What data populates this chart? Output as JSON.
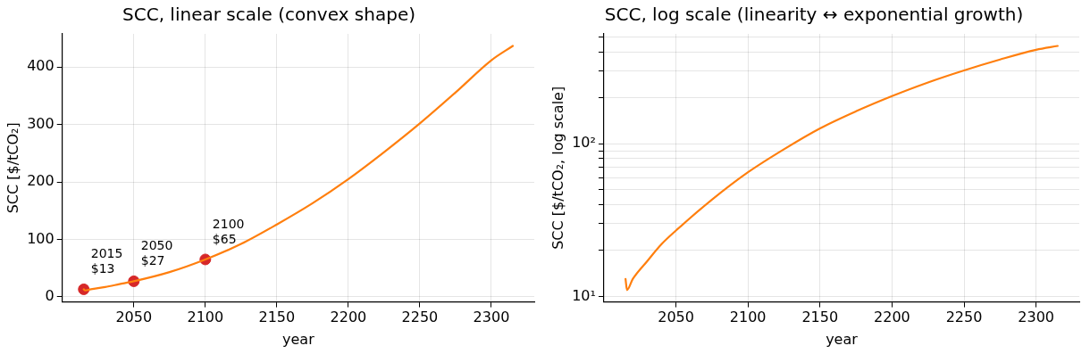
{
  "chart_data": [
    {
      "type": "line",
      "title": "SCC, linear scale (convex shape)",
      "xlabel": "year",
      "ylabel": "SCC [$/tCO₂]",
      "xlim": [
        2000,
        2330
      ],
      "xticks": [
        2050,
        2100,
        2150,
        2200,
        2250,
        2300
      ],
      "ylim": [
        -9,
        458
      ],
      "yticks": [
        0,
        100,
        200,
        300,
        400
      ],
      "grid": true,
      "series": [
        {
          "type": "line",
          "color": "#ff7f0e",
          "marker": "none",
          "x": [
            2015,
            2016,
            2020,
            2030,
            2040,
            2050,
            2075,
            2100,
            2125,
            2150,
            2175,
            2200,
            2225,
            2250,
            2275,
            2300,
            2315
          ],
          "values": [
            13,
            11,
            13,
            17,
            22,
            27,
            43,
            65,
            92,
            126,
            163,
            205,
            252,
            302,
            356,
            412,
            437
          ]
        },
        {
          "type": "scatter",
          "color": "#d62728",
          "marker": "circle",
          "x": [
            2015,
            2050,
            2100
          ],
          "values": [
            13,
            27,
            65
          ],
          "value_labels": [
            "2015\n$13",
            "2050\n$27",
            "2100\n$65"
          ]
        }
      ]
    },
    {
      "type": "line",
      "title": "SCC, log scale (linearity ↔ exponential growth)",
      "xlabel": "year",
      "ylabel": "SCC [$/tCO₂, log scale]",
      "xlim": [
        2000,
        2330
      ],
      "xticks": [
        2050,
        2100,
        2150,
        2200,
        2250,
        2300
      ],
      "ylim": [
        9.2,
        524
      ],
      "log": "y",
      "yticks": [
        {
          "value": 10,
          "label": "10¹"
        },
        {
          "value": 20,
          "label": null
        },
        {
          "value": 30,
          "label": null
        },
        {
          "value": 40,
          "label": null
        },
        {
          "value": 50,
          "label": null
        },
        {
          "value": 60,
          "label": null
        },
        {
          "value": 70,
          "label": null
        },
        {
          "value": 80,
          "label": null
        },
        {
          "value": 90,
          "label": null
        },
        {
          "value": 100,
          "label": "10²"
        },
        {
          "value": 200,
          "label": null
        },
        {
          "value": 300,
          "label": null
        },
        {
          "value": 400,
          "label": null
        },
        {
          "value": 500,
          "label": null
        }
      ],
      "grid": true,
      "series": [
        {
          "type": "line",
          "color": "#ff7f0e",
          "marker": "none",
          "x": [
            2015,
            2016,
            2020,
            2030,
            2040,
            2050,
            2075,
            2100,
            2125,
            2150,
            2175,
            2200,
            2225,
            2250,
            2275,
            2300,
            2315
          ],
          "values": [
            13,
            11,
            13,
            17,
            22,
            27,
            43,
            65,
            92,
            126,
            163,
            205,
            252,
            302,
            356,
            412,
            437
          ]
        }
      ]
    }
  ]
}
